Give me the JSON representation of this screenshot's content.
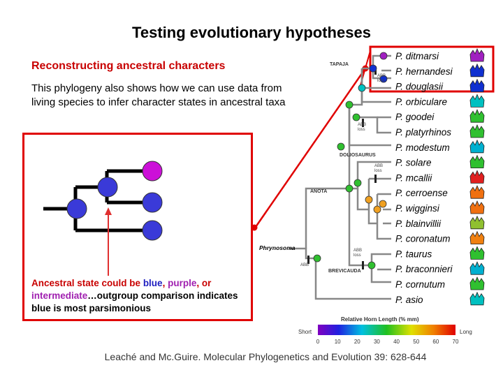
{
  "title": "Testing evolutionary hypotheses",
  "subtitle": "Reconstructing ancestral characters",
  "intro_text": "This phylogeny also shows how we can use data from living species to infer character states in ancestral taxa",
  "caption": {
    "part1": "Ancestral state could be ",
    "blue": "blue",
    "sep": ", ",
    "purple": "purple",
    "part2": ", or ",
    "intermediate": "intermediate",
    "part3": "…outgroup comparison indicates blue is most parsimonious"
  },
  "citation": "Leaché and Mc.Guire. Molecular Phylogenetics and Evolution 39: 628-644",
  "taxa": [
    {
      "name": "P. ditmarsi",
      "horn_color": "#a020c0"
    },
    {
      "name": "P. hernandesi",
      "horn_color": "#1030d0"
    },
    {
      "name": "P. douglasii",
      "horn_color": "#1030d0"
    },
    {
      "name": "P. orbiculare",
      "horn_color": "#00c0c0"
    },
    {
      "name": "P. goodei",
      "horn_color": "#30c030"
    },
    {
      "name": "P. platyrhinos",
      "horn_color": "#30c030"
    },
    {
      "name": "P. modestum",
      "horn_color": "#00b0d0"
    },
    {
      "name": "P. solare",
      "horn_color": "#30c030"
    },
    {
      "name": "P. mcallii",
      "horn_color": "#e02020"
    },
    {
      "name": "P. cerroense",
      "horn_color": "#f07010"
    },
    {
      "name": "P. wigginsi",
      "horn_color": "#f07010"
    },
    {
      "name": "P. blainvillii",
      "horn_color": "#90c030"
    },
    {
      "name": "P. coronatum",
      "horn_color": "#f08010"
    },
    {
      "name": "P. taurus",
      "horn_color": "#30c030"
    },
    {
      "name": "P. braconnieri",
      "horn_color": "#00b0d0"
    },
    {
      "name": "P. cornutum",
      "horn_color": "#30c030"
    },
    {
      "name": "P. asio",
      "horn_color": "#00c0c0"
    }
  ],
  "clades": {
    "tapaja": "TAPAJA",
    "doliosaurus": "DOLIOSAURUS",
    "anota": "ANOTA",
    "brevicauda": "BREVICAUDA",
    "outgroup": "Phrynosoma"
  },
  "loss_labels": {
    "abb": "ABB",
    "loss": "loss"
  },
  "scale": {
    "title": "Relative Horn Length (% mm)",
    "low": "Short",
    "high": "Long",
    "ticks": [
      "0",
      "10",
      "20",
      "30",
      "40",
      "50",
      "60",
      "70"
    ]
  },
  "colors": {
    "accent_red": "#e00000",
    "blue": "#3a3ad8",
    "purple": "#cc10d8"
  }
}
